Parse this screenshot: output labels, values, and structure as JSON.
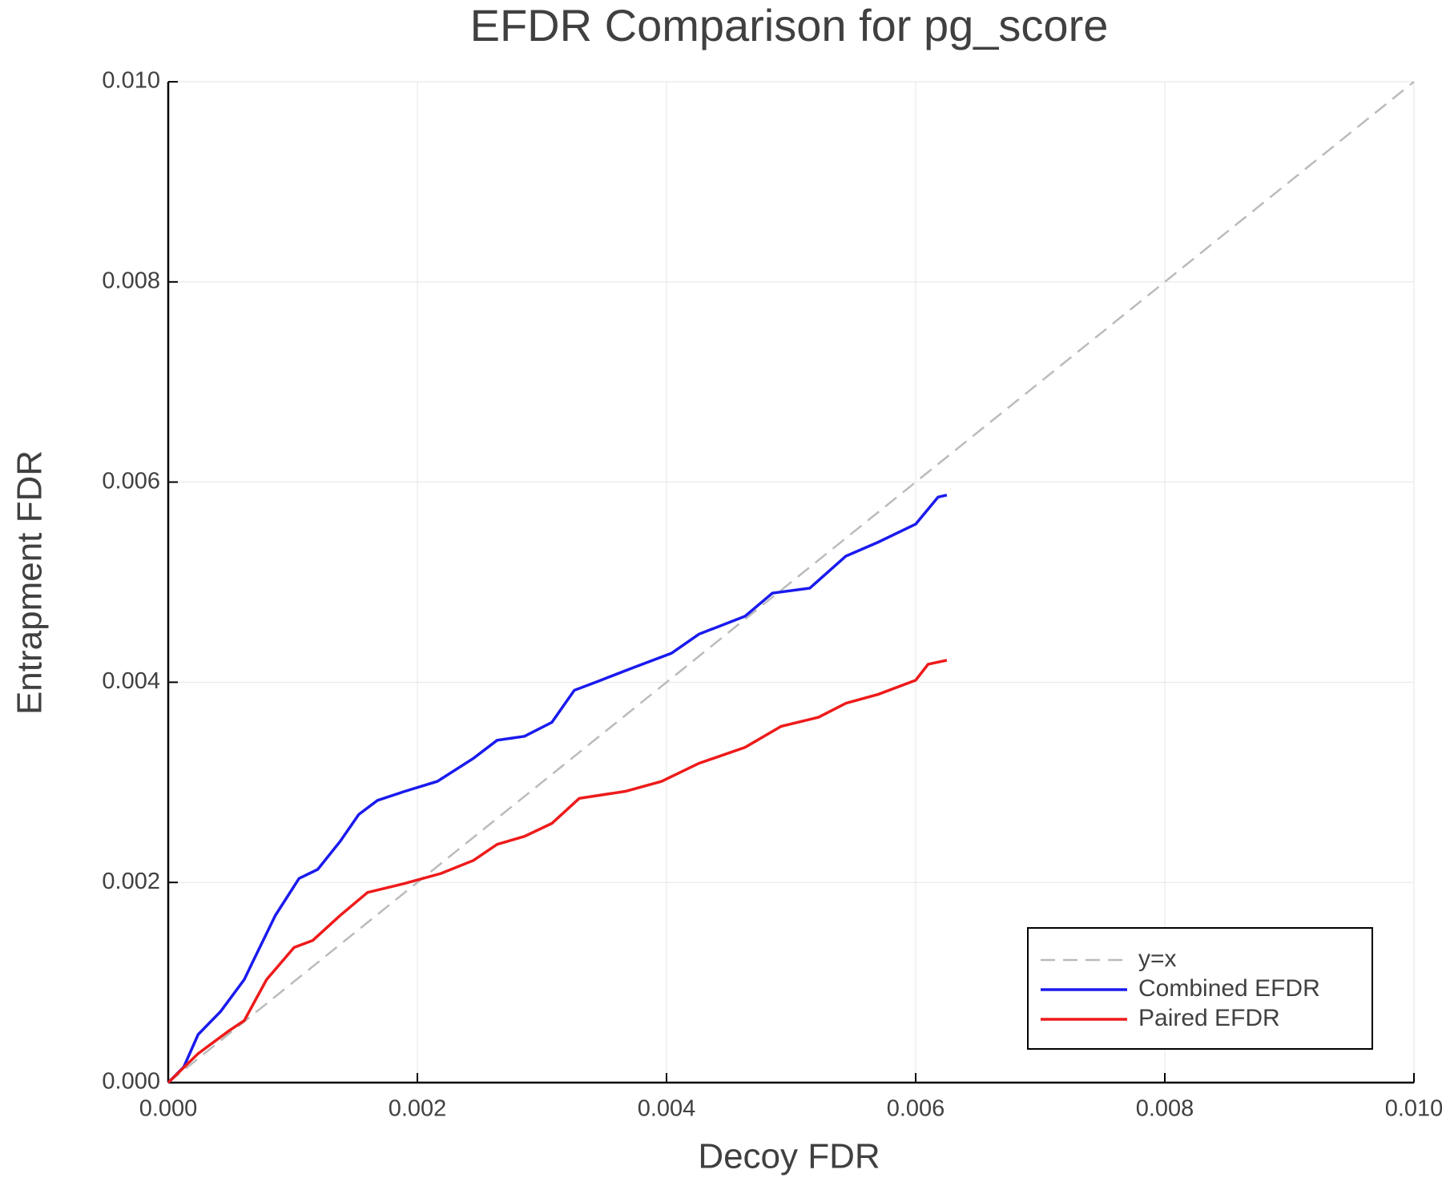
{
  "chart_data": {
    "type": "line",
    "title": "EFDR Comparison for pg_score",
    "xlabel": "Decoy FDR",
    "ylabel": "Entrapment FDR",
    "xlim": [
      0,
      0.01
    ],
    "ylim": [
      0,
      0.01
    ],
    "xticks": [
      {
        "value": 0,
        "label": "0.000"
      },
      {
        "value": 0.002,
        "label": "0.002"
      },
      {
        "value": 0.004,
        "label": "0.004"
      },
      {
        "value": 0.006,
        "label": "0.006"
      },
      {
        "value": 0.008,
        "label": "0.008"
      },
      {
        "value": 0.01,
        "label": "0.010"
      }
    ],
    "yticks": [
      {
        "value": 0,
        "label": "0.000"
      },
      {
        "value": 0.002,
        "label": "0.002"
      },
      {
        "value": 0.004,
        "label": "0.004"
      },
      {
        "value": 0.006,
        "label": "0.006"
      },
      {
        "value": 0.008,
        "label": "0.008"
      },
      {
        "value": 0.01,
        "label": "0.010"
      }
    ],
    "grid": true,
    "legend": "bottom-right",
    "series": [
      {
        "name": "y=x",
        "color": "#bbbbbb",
        "dashed": true,
        "x": [
          0,
          0.01
        ],
        "values": [
          0,
          0.01
        ]
      },
      {
        "name": "Combined EFDR",
        "color": "#1a1aee",
        "dashed": false,
        "x": [
          0,
          0.000125,
          0.00024,
          0.00042,
          0.00061,
          0.00068,
          0.00086,
          0.00105,
          0.0012,
          0.00138,
          0.00153,
          0.00168,
          0.0019,
          0.00216,
          0.00245,
          0.00264,
          0.00286,
          0.00308,
          0.00326,
          0.00345,
          0.00374,
          0.00404,
          0.00426,
          0.00463,
          0.00485,
          0.00515,
          0.00544,
          0.0057,
          0.006,
          0.00618,
          0.00625
        ],
        "values": [
          0,
          0.000156,
          0.00048,
          0.00071,
          0.00103,
          0.00121,
          0.00167,
          0.00204,
          0.00213,
          0.00241,
          0.00268,
          0.00282,
          0.00291,
          0.00301,
          0.00324,
          0.00342,
          0.00346,
          0.0036,
          0.00392,
          0.00401,
          0.00415,
          0.00429,
          0.00448,
          0.00466,
          0.00489,
          0.00494,
          0.00526,
          0.0054,
          0.00558,
          0.00585,
          0.00587
        ]
      },
      {
        "name": "Paired EFDR",
        "color": "#ee1a1a",
        "dashed": false,
        "x": [
          0,
          0.00024,
          0.00049,
          0.00061,
          0.00079,
          0.00101,
          0.00116,
          0.00138,
          0.0016,
          0.0019,
          0.00219,
          0.00245,
          0.00264,
          0.00286,
          0.00308,
          0.0033,
          0.00367,
          0.00396,
          0.00426,
          0.00463,
          0.00492,
          0.00522,
          0.00544,
          0.0057,
          0.006,
          0.0061,
          0.00625
        ],
        "values": [
          0,
          0.00029,
          0.00052,
          0.00062,
          0.00103,
          0.00135,
          0.00142,
          0.00167,
          0.0019,
          0.00199,
          0.00209,
          0.00222,
          0.00238,
          0.00246,
          0.00259,
          0.00284,
          0.00291,
          0.00301,
          0.00319,
          0.00335,
          0.00356,
          0.00365,
          0.00379,
          0.00388,
          0.00402,
          0.00418,
          0.00422
        ]
      }
    ]
  }
}
